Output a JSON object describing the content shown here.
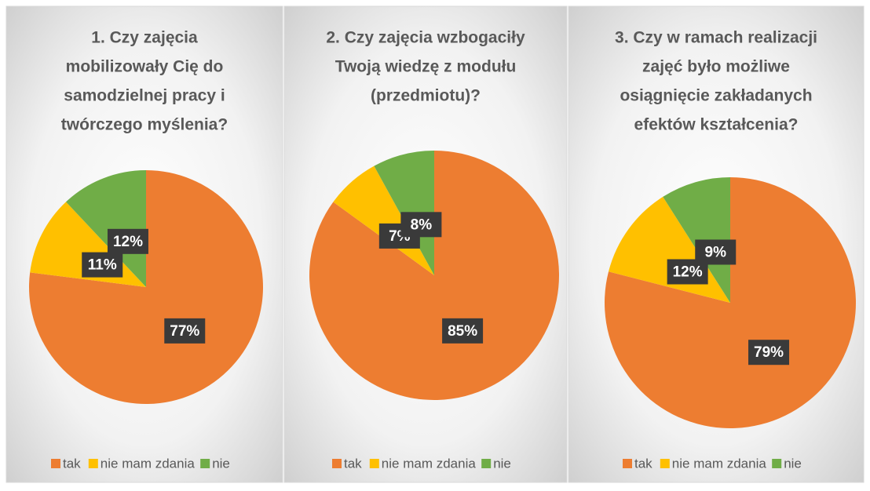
{
  "chart_data": [
    {
      "type": "pie",
      "title": [
        "1. Czy zajęcia",
        "mobilizowały Cię do",
        "samodzielnej pracy i",
        "twórczego myślenia?"
      ],
      "categories": [
        "tak",
        "nie mam zdania",
        "nie"
      ],
      "values": [
        77,
        11,
        12
      ],
      "value_labels": [
        "77%",
        "11%",
        "12%"
      ],
      "colors": [
        "#ED7D31",
        "#FFC000",
        "#70AD47"
      ],
      "legend": "bottom"
    },
    {
      "type": "pie",
      "title": [
        "2. Czy zajęcia wzbogaciły",
        "Twoją wiedzę z modułu",
        "(przedmiotu)?"
      ],
      "categories": [
        "tak",
        "nie mam zdania",
        "nie"
      ],
      "values": [
        85,
        7,
        8
      ],
      "value_labels": [
        "85%",
        "7%",
        "8%"
      ],
      "colors": [
        "#ED7D31",
        "#FFC000",
        "#70AD47"
      ],
      "legend": "bottom"
    },
    {
      "type": "pie",
      "title": [
        "3. Czy w ramach realizacji",
        "zajęć było możliwe",
        "osiągnięcie zakładanych",
        "efektów kształcenia?"
      ],
      "categories": [
        "tak",
        "nie mam zdania",
        "nie"
      ],
      "values": [
        79,
        12,
        9
      ],
      "value_labels": [
        "79%",
        "12%",
        "9%"
      ],
      "colors": [
        "#ED7D31",
        "#FFC000",
        "#70AD47"
      ],
      "legend": "bottom"
    }
  ]
}
